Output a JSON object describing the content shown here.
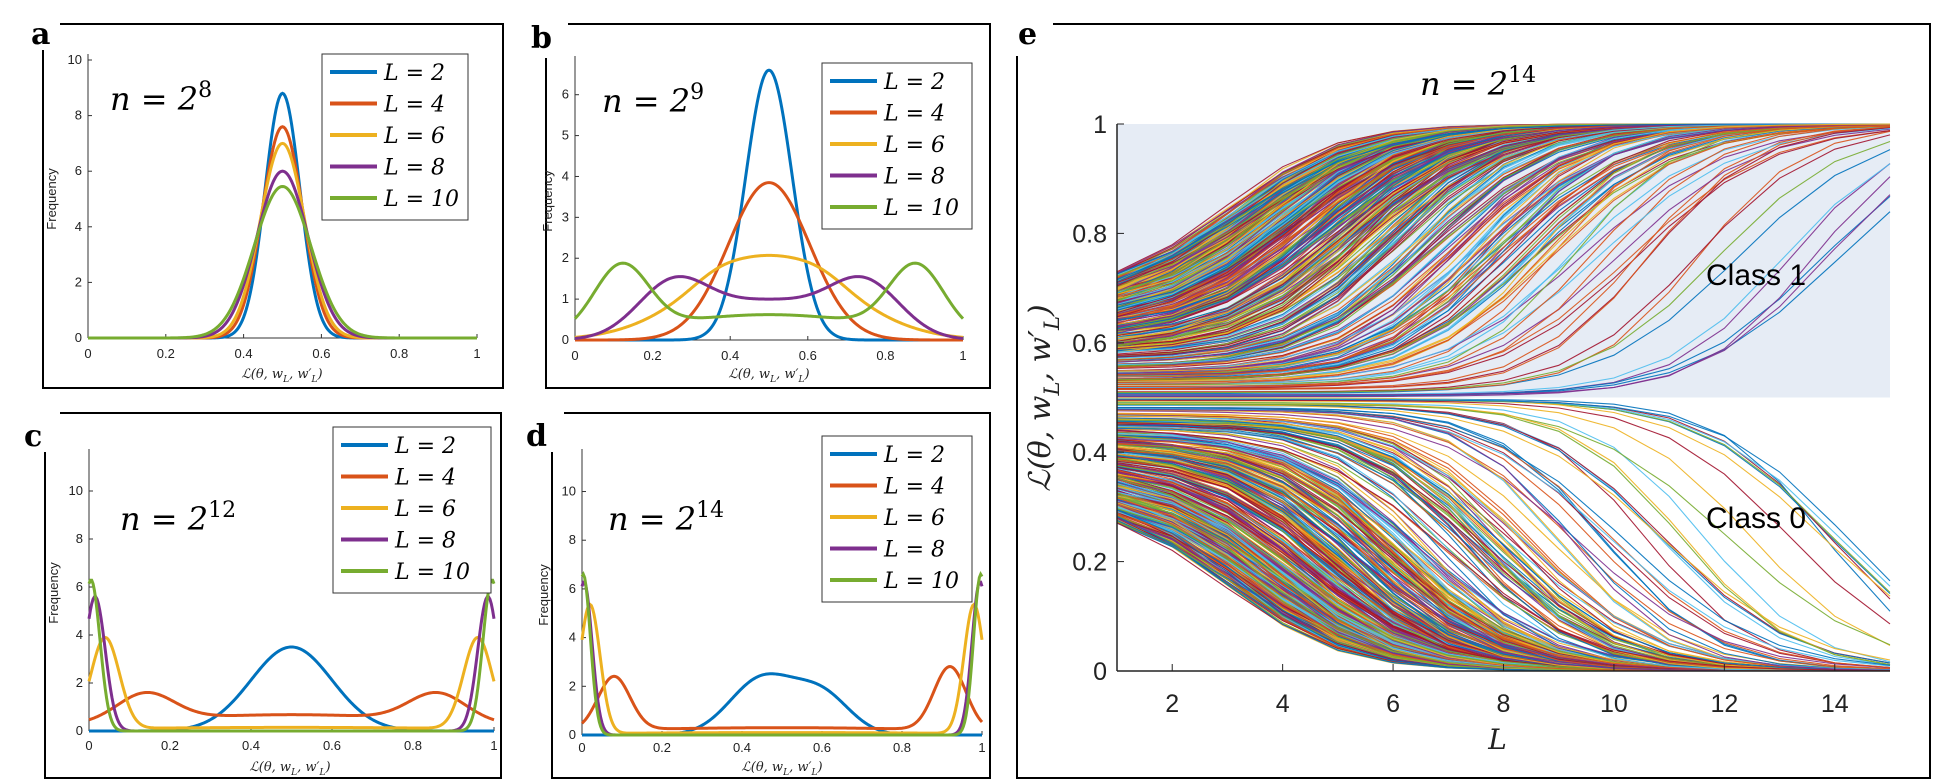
{
  "figure": {
    "panels": [
      "a",
      "b",
      "c",
      "d",
      "e"
    ]
  },
  "chart_data": [
    {
      "id": "a",
      "type": "line",
      "title": "n = 2^8",
      "xlabel": "ℒ(θ, w_L, w′_L)",
      "ylabel": "Frequency",
      "xlim": [
        0,
        1
      ],
      "ylim": [
        0,
        10
      ],
      "xticks": [
        "0",
        "0.2",
        "0.4",
        "0.6",
        "0.8",
        "1"
      ],
      "yticks": [
        "0",
        "2",
        "4",
        "6",
        "8",
        "10"
      ],
      "legend_position": "top-right",
      "series": [
        {
          "name": "L = 2",
          "color": "#0072BD",
          "kind": "gauss",
          "params": [
            [
              0.5,
              0.045,
              8.8
            ]
          ]
        },
        {
          "name": "L = 4",
          "color": "#D95319",
          "kind": "gauss",
          "params": [
            [
              0.5,
              0.052,
              7.6
            ]
          ]
        },
        {
          "name": "L = 6",
          "color": "#EDB120",
          "kind": "gauss",
          "params": [
            [
              0.5,
              0.057,
              7.0
            ]
          ]
        },
        {
          "name": "L = 8",
          "color": "#7E2F8E",
          "kind": "gauss",
          "params": [
            [
              0.5,
              0.066,
              6.0
            ]
          ]
        },
        {
          "name": "L = 10",
          "color": "#77AC30",
          "kind": "gauss",
          "params": [
            [
              0.5,
              0.073,
              5.45
            ]
          ]
        }
      ]
    },
    {
      "id": "b",
      "type": "line",
      "title": "n = 2^9",
      "xlabel": "ℒ(θ, w_L, w′_L)",
      "ylabel": "Frequency",
      "xlim": [
        0,
        1
      ],
      "ylim": [
        0,
        6.8
      ],
      "xticks": [
        "0",
        "0.2",
        "0.4",
        "0.6",
        "0.8",
        "1"
      ],
      "yticks": [
        "0",
        "1",
        "2",
        "3",
        "4",
        "5",
        "6"
      ],
      "legend_position": "top-right",
      "series": [
        {
          "name": "L = 2",
          "color": "#0072BD",
          "kind": "gauss",
          "params": [
            [
              0.5,
              0.06,
              6.6
            ]
          ]
        },
        {
          "name": "L = 4",
          "color": "#D95319",
          "kind": "gauss",
          "params": [
            [
              0.5,
              0.105,
              3.85
            ]
          ]
        },
        {
          "name": "L = 6",
          "color": "#EDB120",
          "kind": "gauss",
          "params": [
            [
              0.5,
              0.19,
              2.05
            ],
            [
              0.36,
              0.06,
              0.15
            ],
            [
              0.64,
              0.06,
              0.15
            ]
          ]
        },
        {
          "name": "L = 8",
          "color": "#7E2F8E",
          "kind": "gauss",
          "params": [
            [
              0.25,
              0.09,
              1.2
            ],
            [
              0.75,
              0.09,
              1.2
            ],
            [
              0.5,
              0.17,
              0.95
            ]
          ]
        },
        {
          "name": "L = 10",
          "color": "#77AC30",
          "kind": "gauss",
          "params": [
            [
              0.12,
              0.07,
              1.6
            ],
            [
              0.88,
              0.07,
              1.6
            ],
            [
              0.5,
              0.3,
              0.62
            ]
          ]
        }
      ]
    },
    {
      "id": "c",
      "type": "line",
      "title": "n = 2^12",
      "xlabel": "ℒ(θ, w_L, w′_L)",
      "ylabel": "Frequency",
      "xlim": [
        0,
        1
      ],
      "ylim": [
        0,
        11.5
      ],
      "xticks": [
        "0",
        "0.2",
        "0.4",
        "0.6",
        "0.8",
        "1"
      ],
      "yticks": [
        "0",
        "2",
        "4",
        "6",
        "8",
        "10"
      ],
      "legend_position": "top-right",
      "series": [
        {
          "name": "L = 2",
          "color": "#0072BD",
          "kind": "gauss",
          "params": [
            [
              0.5,
              0.1,
              3.5
            ]
          ]
        },
        {
          "name": "L = 4",
          "color": "#D95319",
          "kind": "gauss",
          "params": [
            [
              0.14,
              0.07,
              1.15
            ],
            [
              0.86,
              0.07,
              1.15
            ],
            [
              0.5,
              0.4,
              0.68
            ]
          ]
        },
        {
          "name": "L = 6",
          "color": "#EDB120",
          "kind": "gauss",
          "params": [
            [
              0.04,
              0.035,
              3.8
            ],
            [
              0.96,
              0.035,
              3.8
            ],
            [
              0.5,
              0.5,
              0.15
            ]
          ]
        },
        {
          "name": "L = 8",
          "color": "#7E2F8E",
          "kind": "gauss",
          "params": [
            [
              0.015,
              0.025,
              5.6
            ],
            [
              0.985,
              0.025,
              5.6
            ]
          ]
        },
        {
          "name": "L = 10",
          "color": "#77AC30",
          "kind": "gauss",
          "params": [
            [
              0.005,
              0.022,
              6.3
            ],
            [
              0.995,
              0.022,
              6.3
            ]
          ]
        }
      ]
    },
    {
      "id": "d",
      "type": "line",
      "title": "n = 2^14",
      "xlabel": "ℒ(θ, w_L, w′_L)",
      "ylabel": "Frequency",
      "xlim": [
        0,
        1
      ],
      "ylim": [
        0,
        11.5
      ],
      "xticks": [
        "0",
        "0.2",
        "0.4",
        "0.6",
        "0.8",
        "1"
      ],
      "yticks": [
        "0",
        "2",
        "4",
        "6",
        "8",
        "10"
      ],
      "legend_position": "top-right",
      "series": [
        {
          "name": "L = 2",
          "color": "#0072BD",
          "kind": "gauss",
          "params": [
            [
              0.45,
              0.08,
              2.3
            ],
            [
              0.6,
              0.07,
              1.6
            ]
          ]
        },
        {
          "name": "L = 4",
          "color": "#D95319",
          "kind": "gauss",
          "params": [
            [
              0.08,
              0.04,
              2.2
            ],
            [
              0.92,
              0.04,
              2.6
            ],
            [
              0.5,
              0.5,
              0.3
            ]
          ]
        },
        {
          "name": "L = 6",
          "color": "#EDB120",
          "kind": "gauss",
          "params": [
            [
              0.02,
              0.025,
              5.3
            ],
            [
              0.98,
              0.025,
              5.3
            ],
            [
              0.5,
              0.5,
              0.1
            ]
          ]
        },
        {
          "name": "L = 8",
          "color": "#7E2F8E",
          "kind": "gauss",
          "params": [
            [
              0.005,
              0.02,
              6.3
            ],
            [
              0.995,
              0.02,
              6.3
            ]
          ]
        },
        {
          "name": "L = 10",
          "color": "#77AC30",
          "kind": "gauss",
          "params": [
            [
              0.003,
              0.018,
              6.6
            ],
            [
              0.997,
              0.018,
              6.6
            ]
          ]
        }
      ]
    },
    {
      "id": "e",
      "type": "line",
      "title": "n = 2^14",
      "xlabel": "L",
      "ylabel": "ℒ(θ, w_L, w′_L)",
      "xlim": [
        1,
        15
      ],
      "ylim": [
        0,
        1
      ],
      "xticks": [
        "2",
        "4",
        "6",
        "8",
        "10",
        "12",
        "14"
      ],
      "yticks": [
        "0",
        "0.2",
        "0.4",
        "0.6",
        "0.8",
        "1"
      ],
      "shaded_region": {
        "y_from": 0.5,
        "y_to": 1,
        "color": "#E6ECF5"
      },
      "annotations": [
        "Class 1",
        "Class 0"
      ],
      "trajectory_count": 900,
      "palette": [
        "#0072BD",
        "#D95319",
        "#EDB120",
        "#7E2F8E",
        "#77AC30",
        "#4DBEEE",
        "#A2142F"
      ],
      "description": "Each trajectory starts at an initial value near 0.5 at L = 1 and converges to 1 (Class 1) or 0 (Class 0) as L increases to 15."
    }
  ],
  "labels": {
    "letter_a": "a",
    "letter_b": "b",
    "letter_c": "c",
    "letter_d": "d",
    "letter_e": "e",
    "class1": "Class 1",
    "class0": "Class 0",
    "e_xlabel": "L"
  }
}
